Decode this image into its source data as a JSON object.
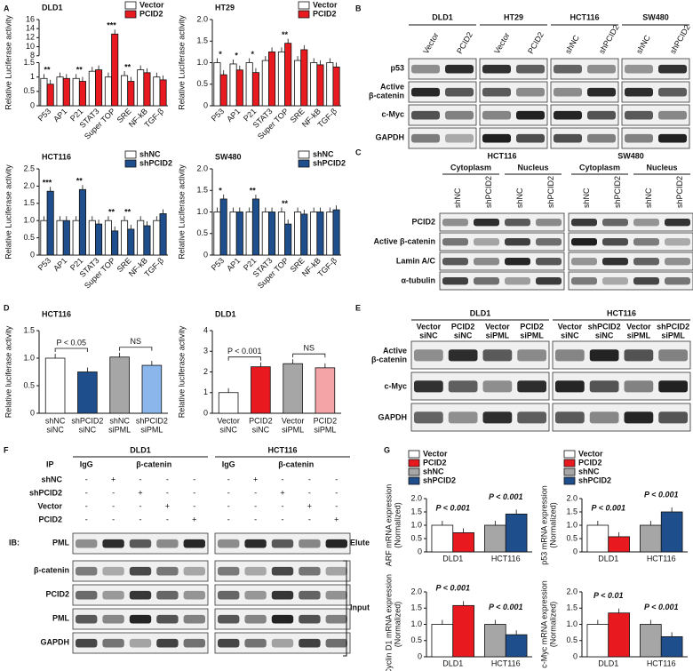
{
  "panel_labels": [
    "A",
    "B",
    "C",
    "D",
    "E",
    "F",
    "G"
  ],
  "chart_data": [
    {
      "type": "bar",
      "title": "DLD1",
      "ylabel": "Relative Luciferase activity",
      "categories": [
        "P53",
        "AP1",
        "P21",
        "STAT3",
        "Super TOP",
        "SRE",
        "NF-kB",
        "TGF-β"
      ],
      "series": [
        {
          "name": "Vector",
          "color": "#ffffff",
          "values": [
            0.95,
            1.0,
            0.95,
            1.2,
            1.0,
            1.05,
            1.25,
            1.0
          ]
        },
        {
          "name": "PCID2",
          "color": "#e8191f",
          "values": [
            0.75,
            0.95,
            0.85,
            1.25,
            12.8,
            0.85,
            1.15,
            0.9
          ]
        }
      ],
      "ylim": [
        0,
        16
      ],
      "yticks": [
        0,
        0.5,
        1,
        1.5,
        8,
        10,
        12,
        14,
        16
      ],
      "axis_break": [
        1.5,
        8
      ],
      "stars": [
        "**",
        null,
        "**",
        null,
        "***",
        "**",
        null,
        null
      ],
      "legend": "upper right"
    },
    {
      "type": "bar",
      "title": "HT29",
      "ylabel": "Relative Luciferase activity",
      "categories": [
        "P53",
        "AP1",
        "P21",
        "STAT3",
        "Super TOP",
        "SRE",
        "NF-kB",
        "TGF-β"
      ],
      "series": [
        {
          "name": "Vector",
          "color": "#ffffff",
          "values": [
            1.0,
            0.97,
            1.0,
            1.05,
            1.25,
            1.05,
            1.0,
            1.0
          ]
        },
        {
          "name": "PCID2",
          "color": "#e8191f",
          "values": [
            0.72,
            0.83,
            0.77,
            1.25,
            1.45,
            1.3,
            0.95,
            0.9
          ]
        }
      ],
      "ylim": [
        0,
        2
      ],
      "yticks": [
        0,
        0.5,
        {
          "value": 1,
          "label": "1.0"
        },
        1.5,
        {
          "value": 2,
          "label": "2.0"
        }
      ],
      "stars": [
        "*",
        "*",
        "*",
        null,
        "**",
        null,
        null,
        null
      ],
      "legend": "upper right"
    },
    {
      "type": "bar",
      "title": "HCT116",
      "ylabel": "Relative Luciferase activity",
      "categories": [
        "P53",
        "AP1",
        "P21",
        "STAT3",
        "Super TOP",
        "SRE",
        "NF-kB",
        "TGF-β"
      ],
      "series": [
        {
          "name": "shNC",
          "color": "#ffffff",
          "values": [
            1.0,
            1.0,
            1.0,
            1.0,
            1.0,
            1.0,
            1.0,
            1.0
          ]
        },
        {
          "name": "shPCID2",
          "color": "#1f4e8c",
          "values": [
            1.85,
            1.0,
            1.9,
            0.9,
            0.7,
            0.75,
            0.85,
            1.2
          ]
        }
      ],
      "ylim": [
        0,
        2.5
      ],
      "yticks": [
        0,
        0.5,
        {
          "value": 1,
          "label": "1.0"
        },
        1.5,
        {
          "value": 2,
          "label": "2.0"
        },
        2.5
      ],
      "stars": [
        "***",
        null,
        "**",
        null,
        "**",
        "**",
        null,
        null
      ],
      "legend": "upper right"
    },
    {
      "type": "bar",
      "title": "SW480",
      "ylabel": "Relative Luciferase activity",
      "categories": [
        "P53",
        "AP1",
        "P21",
        "STAT3",
        "Super TOP",
        "SRE",
        "NF-kB",
        "TGF-β"
      ],
      "series": [
        {
          "name": "shNC",
          "color": "#ffffff",
          "values": [
            1.0,
            1.0,
            1.0,
            1.0,
            1.0,
            1.0,
            1.0,
            1.0
          ]
        },
        {
          "name": "shPCID2",
          "color": "#1f4e8c",
          "values": [
            1.3,
            1.0,
            1.3,
            1.0,
            0.72,
            0.95,
            1.0,
            1.05
          ]
        }
      ],
      "ylim": [
        0,
        2
      ],
      "yticks": [
        0,
        0.5,
        {
          "value": 1,
          "label": "1.0"
        },
        1.5,
        {
          "value": 2,
          "label": "2.0"
        }
      ],
      "stars": [
        "*",
        null,
        "**",
        null,
        "**",
        null,
        null,
        null
      ],
      "legend": "upper right"
    },
    {
      "type": "bar",
      "title": "HCT116",
      "ylabel": "Relative luciferase activity",
      "categories": [
        [
          "shNC",
          "siNC"
        ],
        [
          "shPCID2",
          "siNC"
        ],
        [
          "shNC",
          "siPML"
        ],
        [
          "shPCID2",
          "siPML"
        ]
      ],
      "values": [
        1.0,
        0.75,
        1.02,
        0.87
      ],
      "colors": [
        "#ffffff",
        "#1f4e8c",
        "#a6a6a6",
        "#8ab6ec"
      ],
      "ylim": [
        0,
        1.5
      ],
      "yticks": [
        0,
        0.5,
        {
          "value": 1,
          "label": "1.0"
        },
        1.5
      ],
      "brackets": [
        "P < 0.05",
        "NS"
      ]
    },
    {
      "type": "bar",
      "title": "DLD1",
      "ylabel": "Relative luciferase activity",
      "categories": [
        [
          "Vector",
          "siNC"
        ],
        [
          "PCID2",
          "siNC"
        ],
        [
          "Vector",
          "siPML"
        ],
        [
          "PCID2",
          "siPML"
        ]
      ],
      "values": [
        1.0,
        2.25,
        2.4,
        2.2
      ],
      "colors": [
        "#ffffff",
        "#e8191f",
        "#a6a6a6",
        "#f4a3a6"
      ],
      "ylim": [
        0,
        4
      ],
      "yticks": [
        0,
        1,
        2,
        3,
        4
      ],
      "brackets": [
        "P < 0.001",
        "NS"
      ]
    },
    {
      "type": "bar",
      "ylabel": [
        "ARF mRNA expression",
        "(Normalized)"
      ],
      "categories": [
        "DLD1",
        "HCT116"
      ],
      "series": [
        {
          "name": "Vector",
          "color": "#ffffff",
          "values": [
            1.0,
            null
          ]
        },
        {
          "name": "PCID2",
          "color": "#e8191f",
          "values": [
            0.72,
            null
          ]
        },
        {
          "name": "shNC",
          "color": "#a6a6a6",
          "values": [
            null,
            1.0
          ]
        },
        {
          "name": "shPCID2",
          "color": "#1f4e8c",
          "values": [
            null,
            1.42
          ]
        }
      ],
      "ylim": [
        0,
        2
      ],
      "yticks": [
        0,
        0.5,
        {
          "value": 1,
          "label": "1.0"
        },
        1.5,
        {
          "value": 2,
          "label": "2.0"
        }
      ],
      "annotations": [
        "P < 0.001",
        "P < 0.001"
      ],
      "legend": "upper left"
    },
    {
      "type": "bar",
      "ylabel": [
        "p53 mRNA expression",
        "(Normalized)"
      ],
      "categories": [
        "DLD1",
        "HCT116"
      ],
      "series": [
        {
          "name": "Vector",
          "color": "#ffffff",
          "values": [
            1.0,
            null
          ]
        },
        {
          "name": "PCID2",
          "color": "#e8191f",
          "values": [
            0.57,
            null
          ]
        },
        {
          "name": "shNC",
          "color": "#a6a6a6",
          "values": [
            null,
            1.0
          ]
        },
        {
          "name": "shPCID2",
          "color": "#1f4e8c",
          "values": [
            null,
            1.5
          ]
        }
      ],
      "ylim": [
        0,
        2
      ],
      "yticks": [
        0,
        0.5,
        {
          "value": 1,
          "label": "1.0"
        },
        1.5,
        {
          "value": 2,
          "label": "2.0"
        }
      ],
      "annotations": [
        "P < 0.001",
        "P < 0.001"
      ],
      "legend": "upper left"
    },
    {
      "type": "bar",
      "ylabel": [
        "Cyclin D1 mRNA expression",
        "(Normalized)"
      ],
      "categories": [
        "DLD1",
        "HCT116"
      ],
      "series": [
        {
          "color": "#ffffff",
          "values": [
            1.0,
            null
          ]
        },
        {
          "color": "#e8191f",
          "values": [
            1.58,
            null
          ]
        },
        {
          "color": "#a6a6a6",
          "values": [
            null,
            1.0
          ]
        },
        {
          "color": "#1f4e8c",
          "values": [
            null,
            0.68
          ]
        }
      ],
      "ylim": [
        0,
        2
      ],
      "yticks": [
        0,
        0.5,
        {
          "value": 1,
          "label": "1.0"
        },
        1.5,
        {
          "value": 2,
          "label": "2.0"
        }
      ],
      "annotations": [
        "P < 0.001",
        "P < 0.001"
      ]
    },
    {
      "type": "bar",
      "ylabel": [
        "c-Myc mRNA expression",
        "(Normalized)"
      ],
      "categories": [
        "DLD1",
        "HCT116"
      ],
      "series": [
        {
          "color": "#ffffff",
          "values": [
            1.0,
            null
          ]
        },
        {
          "color": "#e8191f",
          "values": [
            1.35,
            null
          ]
        },
        {
          "color": "#a6a6a6",
          "values": [
            null,
            1.0
          ]
        },
        {
          "color": "#1f4e8c",
          "values": [
            null,
            0.62
          ]
        }
      ],
      "ylim": [
        0,
        2
      ],
      "yticks": [
        0,
        0.5,
        {
          "value": 1,
          "label": "1.0"
        },
        1.5,
        {
          "value": 2,
          "label": "2.0"
        }
      ],
      "annotations": [
        "P < 0.01",
        "P < 0.001"
      ]
    }
  ],
  "blots": {
    "B": {
      "groups": [
        {
          "name": "DLD1",
          "lanes": [
            "Vector",
            "PCID2"
          ]
        },
        {
          "name": "HT29",
          "lanes": [
            "Vector",
            "PCID2"
          ]
        },
        {
          "name": "HCT116",
          "lanes": [
            "shNC",
            "shPCID2"
          ]
        },
        {
          "name": "SW480",
          "lanes": [
            "shNC",
            "shPCID2"
          ]
        }
      ],
      "rows": [
        [
          "p53"
        ],
        [
          "Active",
          "β-catenin"
        ],
        [
          "c-Myc"
        ],
        [
          "GAPDH"
        ]
      ]
    },
    "C": {
      "groups": [
        {
          "name": "HCT116",
          "fractions": [
            {
              "name": "Cytoplasm",
              "lanes": [
                "shNC",
                "shPCID2"
              ]
            },
            {
              "name": "Nucleus",
              "lanes": [
                "shNC",
                "shPCID2"
              ]
            }
          ]
        },
        {
          "name": "SW480",
          "fractions": [
            {
              "name": "Cytoplasm",
              "lanes": [
                "shNC",
                "shPCID2"
              ]
            },
            {
              "name": "Nucleus",
              "lanes": [
                "shNC",
                "shPCID2"
              ]
            }
          ]
        }
      ],
      "rows": [
        "PCID2",
        "Active β-catenin",
        "Lamin A/C",
        "α-tubulin"
      ]
    },
    "E": {
      "groups": [
        {
          "name": "DLD1",
          "lanes": [
            [
              "Vector",
              "siNC"
            ],
            [
              "PCID2",
              "siNC"
            ],
            [
              "Vector",
              "siPML"
            ],
            [
              "PCID2",
              "siPML"
            ]
          ]
        },
        {
          "name": "HCT116",
          "lanes": [
            [
              "Vector",
              "siNC"
            ],
            [
              "shPCID2",
              "siNC"
            ],
            [
              "Vector",
              "siPML"
            ],
            [
              "shPCID2",
              "siPML"
            ]
          ]
        }
      ],
      "rows": [
        [
          "Active",
          "β-catenin"
        ],
        [
          "c-Myc"
        ],
        [
          "GAPDH"
        ]
      ]
    },
    "F": {
      "ip_label": "IP",
      "groups": [
        {
          "name": "DLD1",
          "columns": [
            "IgG",
            "β-catenin"
          ]
        },
        {
          "name": "HCT116",
          "columns": [
            "IgG",
            "β-catenin"
          ]
        }
      ],
      "conditions": [
        {
          "name": "shNC",
          "signs": [
            "-",
            "+",
            "-",
            "-",
            "-",
            "-",
            "+",
            "-",
            "-",
            "-"
          ]
        },
        {
          "name": "shPCID2",
          "signs": [
            "-",
            "-",
            "+",
            "-",
            "-",
            "-",
            "-",
            "+",
            "-",
            "-"
          ]
        },
        {
          "name": "Vector",
          "signs": [
            "-",
            "-",
            "-",
            "+",
            "-",
            "-",
            "-",
            "-",
            "+",
            "-"
          ]
        },
        {
          "name": "PCID2",
          "signs": [
            "-",
            "-",
            "-",
            "-",
            "+",
            "-",
            "-",
            "-",
            "-",
            "+"
          ]
        }
      ],
      "ib_label": "IB:",
      "rows": [
        "PML",
        "β-catenin",
        "PCID2",
        "PML",
        "GAPDH"
      ],
      "elute": "Elute",
      "input": "Input"
    }
  }
}
